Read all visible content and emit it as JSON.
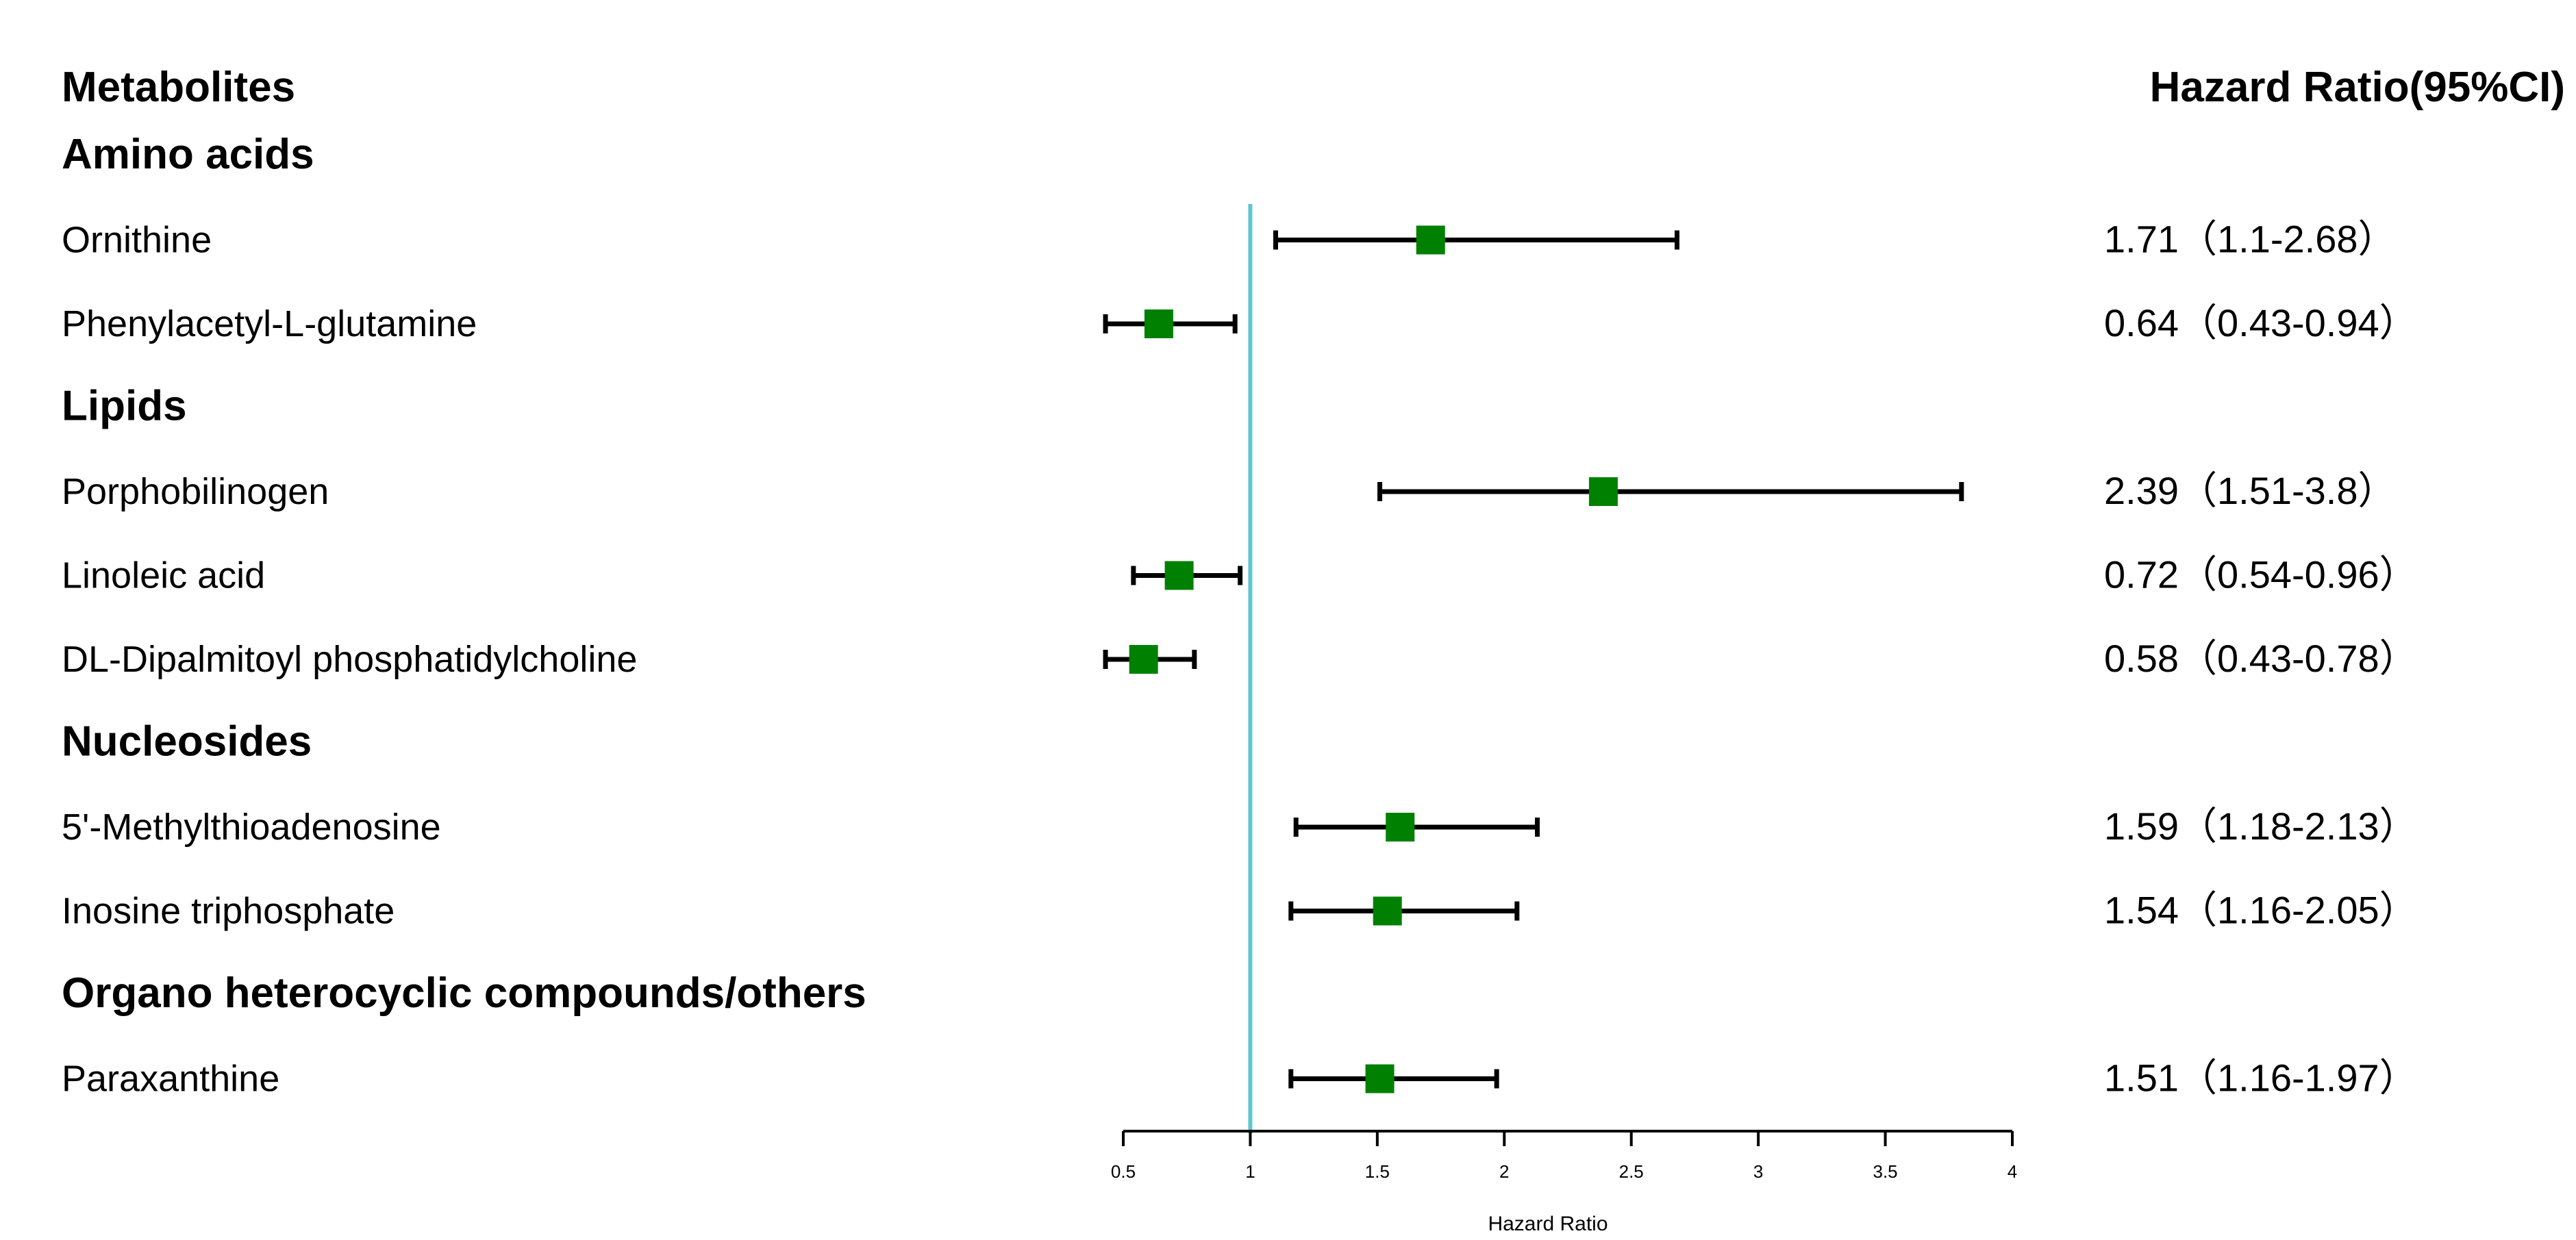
{
  "chart_data": {
    "type": "forest",
    "header_left": "Metabolites",
    "header_right": "Hazard Ratio(95%CI)",
    "xlabel": "Hazard Ratio",
    "xlim": [
      0.5,
      4
    ],
    "reference_line": 1,
    "ticks": [
      "0.5",
      "1",
      "1.5",
      "2",
      "2.5",
      "3",
      "3.5",
      "4"
    ],
    "tick_values": [
      0.5,
      1,
      1.5,
      2,
      2.5,
      3,
      3.5,
      4
    ],
    "colors": {
      "marker": "#008000",
      "reference": "#5bc8d0",
      "line": "#000000"
    },
    "groups": [
      {
        "name": "Amino acids",
        "items": [
          {
            "label": "Ornithine",
            "hr": 1.71,
            "lo": 1.1,
            "hi": 2.68,
            "text": "1.71（1.1-2.68）"
          },
          {
            "label": "Phenylacetyl-L-glutamine",
            "hr": 0.64,
            "lo": 0.43,
            "hi": 0.94,
            "text": "0.64（0.43-0.94）"
          }
        ]
      },
      {
        "name": "Lipids",
        "items": [
          {
            "label": "Porphobilinogen",
            "hr": 2.39,
            "lo": 1.51,
            "hi": 3.8,
            "text": "2.39（1.51-3.8）"
          },
          {
            "label": "Linoleic acid",
            "hr": 0.72,
            "lo": 0.54,
            "hi": 0.96,
            "text": "0.72（0.54-0.96）"
          },
          {
            "label": "DL-Dipalmitoyl phosphatidylcholine",
            "hr": 0.58,
            "lo": 0.43,
            "hi": 0.78,
            "text": "0.58（0.43-0.78）"
          }
        ]
      },
      {
        "name": "Nucleosides",
        "items": [
          {
            "label": "5'-Methylthioadenosine",
            "hr": 1.59,
            "lo": 1.18,
            "hi": 2.13,
            "text": "1.59（1.18-2.13）"
          },
          {
            "label": "Inosine triphosphate",
            "hr": 1.54,
            "lo": 1.16,
            "hi": 2.05,
            "text": "1.54（1.16-2.05）"
          }
        ]
      },
      {
        "name": "Organo heterocyclic compounds/others",
        "items": [
          {
            "label": "Paraxanthine",
            "hr": 1.51,
            "lo": 1.16,
            "hi": 1.97,
            "text": "1.51（1.16-1.97）"
          }
        ]
      }
    ]
  }
}
